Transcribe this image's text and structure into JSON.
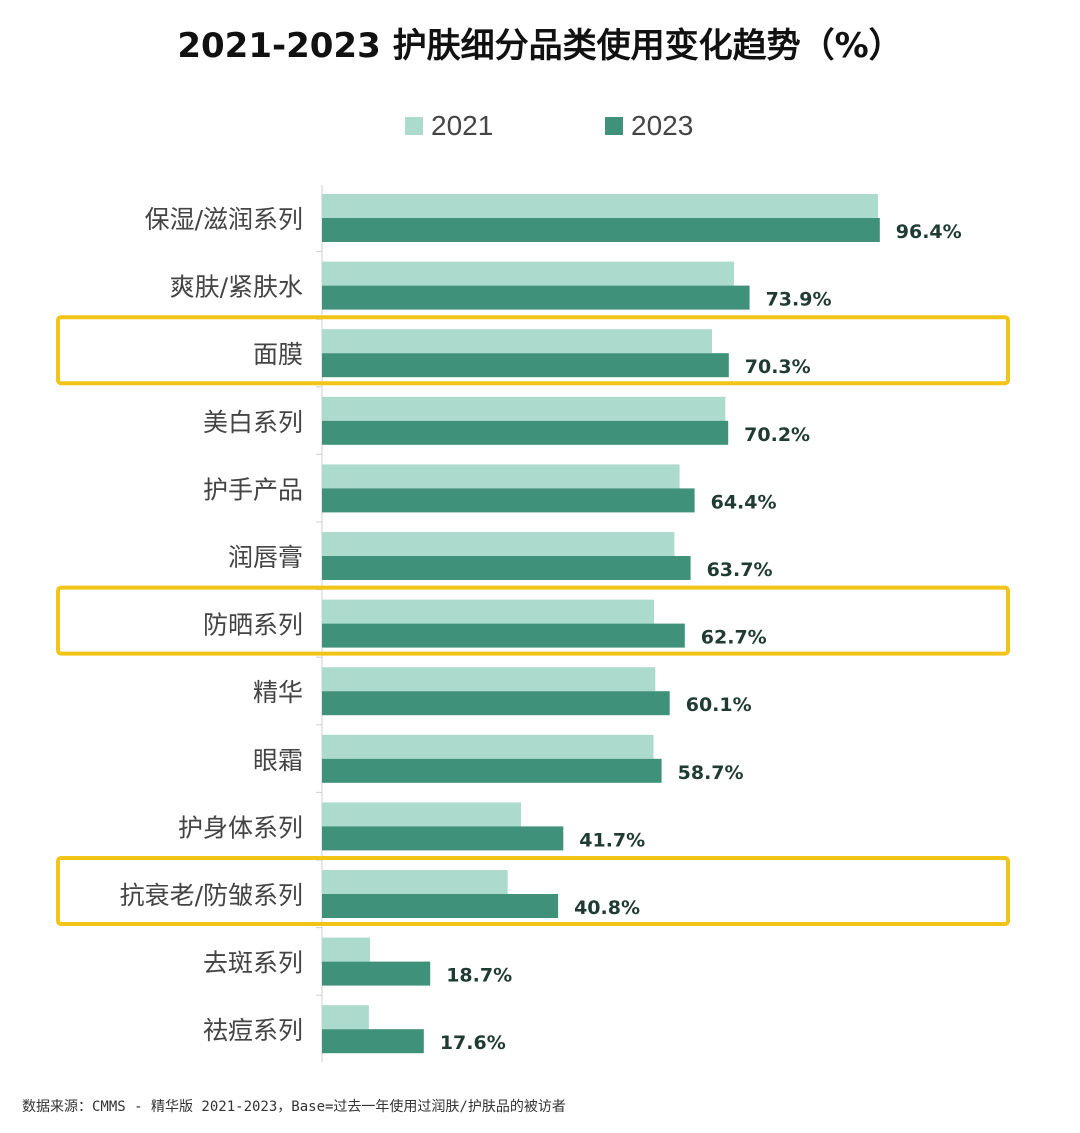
{
  "chart_data": {
    "type": "bar",
    "orientation": "horizontal",
    "title": "2021-2023 护肤细分品类使用变化趋势（%）",
    "categories": [
      "保湿/滋润系列",
      "爽肤/紧肤水",
      "面膜",
      "美白系列",
      "护手产品",
      "润唇膏",
      "防晒系列",
      "精华",
      "眼霜",
      "护身体系列",
      "抗衰老/防皱系列",
      "去斑系列",
      "祛痘系列"
    ],
    "series": [
      {
        "name": "2021",
        "color": "#acdbcd",
        "values": [
          96.1,
          71.2,
          67.4,
          69.7,
          61.8,
          60.9,
          57.4,
          57.6,
          57.3,
          34.4,
          32.1,
          8.3,
          8.1
        ]
      },
      {
        "name": "2023",
        "color": "#3f917a",
        "values": [
          96.4,
          73.9,
          70.3,
          70.2,
          64.4,
          63.7,
          62.7,
          60.1,
          58.7,
          41.7,
          40.8,
          18.7,
          17.6
        ]
      }
    ],
    "data_labels": [
      "96.4%",
      "73.9%",
      "70.3%",
      "70.2%",
      "64.4%",
      "63.7%",
      "62.7%",
      "60.1%",
      "58.7%",
      "41.7%",
      "40.8%",
      "18.7%",
      "17.6%"
    ],
    "highlighted_categories": [
      "面膜",
      "防晒系列",
      "抗衰老/防皱系列"
    ],
    "highlight_color": "#f2c418",
    "legend_position": "top",
    "xlim": [
      0,
      100
    ],
    "grid": false
  },
  "source_note": "数据来源：CMMS - 精华版 2021-2023，Base=过去一年使用过润肤/护肤品的被访者"
}
